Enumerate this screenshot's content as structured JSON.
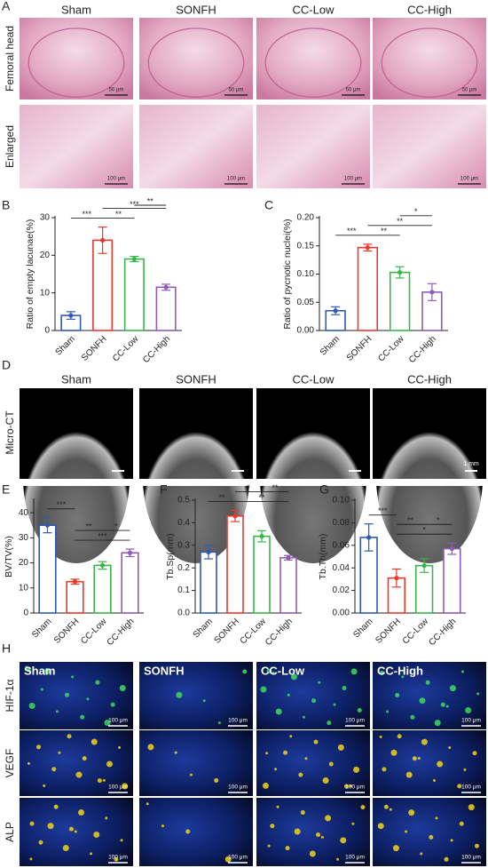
{
  "histology": {
    "panel": "A",
    "columns": [
      "Sham",
      "SONFH",
      "CC-Low",
      "CC-High"
    ],
    "rows": [
      {
        "label": "Femoral head",
        "scale_bar": "50 μm"
      },
      {
        "label": "Enlarged",
        "scale_bar": "100 μm"
      }
    ]
  },
  "micro_ct": {
    "panel": "D",
    "columns": [
      "Sham",
      "SONFH",
      "CC-Low",
      "CC-High"
    ],
    "row_label": "Micro-CT",
    "scale_bar": "1 mm"
  },
  "immunofluorescence": {
    "panel": "H",
    "columns": [
      "Sham",
      "SONFH",
      "CC-Low",
      "CC-High"
    ],
    "rows": [
      "HIF-1α",
      "VEGF",
      "ALP"
    ],
    "scale_bar": "100 μm"
  },
  "chart_data": [
    {
      "type": "bar",
      "panel": "B",
      "ylabel": "Ratio of empty lacunae(%)",
      "categories": [
        "Sham",
        "SONFH",
        "CC-Low",
        "CC-High"
      ],
      "values": [
        4,
        24,
        19,
        11.5
      ],
      "errors": [
        1,
        3.5,
        0.7,
        0.8
      ],
      "colors": [
        "#2f5bb5",
        "#e8392f",
        "#3ab54a",
        "#8e5bb5"
      ],
      "ylim": [
        0,
        30
      ],
      "yticks": [
        0,
        10,
        20,
        30
      ],
      "significance": [
        {
          "label": "***",
          "from": 0,
          "to": 1
        },
        {
          "label": "**",
          "from": 1,
          "to": 2
        },
        {
          "label": "***",
          "from": 1,
          "to": 3
        },
        {
          "label": "**",
          "from": 2,
          "to": 3
        }
      ]
    },
    {
      "type": "bar",
      "panel": "C",
      "ylabel": "Ratio of pycnotic nuclei(%)",
      "categories": [
        "Sham",
        "SONFH",
        "CC-Low",
        "CC-High"
      ],
      "values": [
        0.035,
        0.147,
        0.103,
        0.068
      ],
      "errors": [
        0.007,
        0.006,
        0.01,
        0.015
      ],
      "colors": [
        "#2f5bb5",
        "#e8392f",
        "#3ab54a",
        "#8e5bb5"
      ],
      "ylim": [
        0,
        0.2
      ],
      "yticks": [
        {
          "value": 0,
          "label": "0.00"
        },
        {
          "value": 0.05,
          "label": "0.05"
        },
        {
          "value": 0.1,
          "label": "0.10"
        },
        {
          "value": 0.15,
          "label": "0.15"
        },
        {
          "value": 0.2,
          "label": "0.20"
        }
      ],
      "significance": [
        {
          "label": "***",
          "from": 0,
          "to": 1
        },
        {
          "label": "**",
          "from": 1,
          "to": 2
        },
        {
          "label": "**",
          "from": 1,
          "to": 3
        },
        {
          "label": "*",
          "from": 2,
          "to": 3
        }
      ]
    },
    {
      "type": "bar",
      "panel": "E",
      "ylabel": "BV/TV(%)",
      "categories": [
        "Sham",
        "SONFH",
        "CC-Low",
        "CC-High"
      ],
      "values": [
        35,
        12.5,
        19,
        24
      ],
      "errors": [
        3,
        1,
        1.5,
        1.5
      ],
      "colors": [
        "#2f5bb5",
        "#e8392f",
        "#3ab54a",
        "#8e5bb5"
      ],
      "ylim": [
        0,
        45
      ],
      "yticks": [
        0,
        10,
        20,
        30,
        40
      ],
      "significance": [
        {
          "label": "***",
          "from": 0,
          "to": 1
        },
        {
          "label": "***",
          "from": 1,
          "to": 3
        },
        {
          "label": "**",
          "from": 1,
          "to": 2
        },
        {
          "label": "*",
          "from": 2,
          "to": 3
        }
      ]
    },
    {
      "type": "bar",
      "panel": "F",
      "ylabel": "Tb.Sp(mm)",
      "categories": [
        "Sham",
        "SONFH",
        "CC-Low",
        "CC-High"
      ],
      "values": [
        0.27,
        0.43,
        0.34,
        0.245
      ],
      "errors": [
        0.03,
        0.025,
        0.025,
        0.01
      ],
      "colors": [
        "#2f5bb5",
        "#e8392f",
        "#3ab54a",
        "#8e5bb5"
      ],
      "ylim": [
        0,
        0.5
      ],
      "yticks": [
        {
          "value": 0,
          "label": "0.0"
        },
        0.1,
        0.2,
        0.3,
        0.4,
        0.5
      ],
      "significance": [
        {
          "label": "**",
          "from": 0,
          "to": 1
        },
        {
          "label": "**",
          "from": 1,
          "to": 3
        },
        {
          "label": "*",
          "from": 1,
          "to": 2
        },
        {
          "label": "**",
          "from": 2,
          "to": 3
        }
      ]
    },
    {
      "type": "bar",
      "panel": "G",
      "ylabel": "Tb.Th(mm)",
      "categories": [
        "Sham",
        "SONFH",
        "CC-Low",
        "CC-High"
      ],
      "values": [
        0.067,
        0.031,
        0.042,
        0.057
      ],
      "errors": [
        0.012,
        0.008,
        0.006,
        0.005
      ],
      "colors": [
        "#2f5bb5",
        "#e8392f",
        "#3ab54a",
        "#8e5bb5"
      ],
      "ylim": [
        0,
        0.1
      ],
      "yticks": [
        {
          "value": 0,
          "label": "0.00"
        },
        {
          "value": 0.02,
          "label": "0.02"
        },
        {
          "value": 0.04,
          "label": "0.04"
        },
        {
          "value": 0.06,
          "label": "0.06"
        },
        {
          "value": 0.08,
          "label": "0.08"
        },
        {
          "value": 0.1,
          "label": "0.10"
        }
      ],
      "significance": [
        {
          "label": "***",
          "from": 0,
          "to": 1
        },
        {
          "label": "*",
          "from": 1,
          "to": 3
        },
        {
          "label": "**",
          "from": 1,
          "to": 2
        },
        {
          "label": "*",
          "from": 2,
          "to": 3
        }
      ]
    }
  ]
}
